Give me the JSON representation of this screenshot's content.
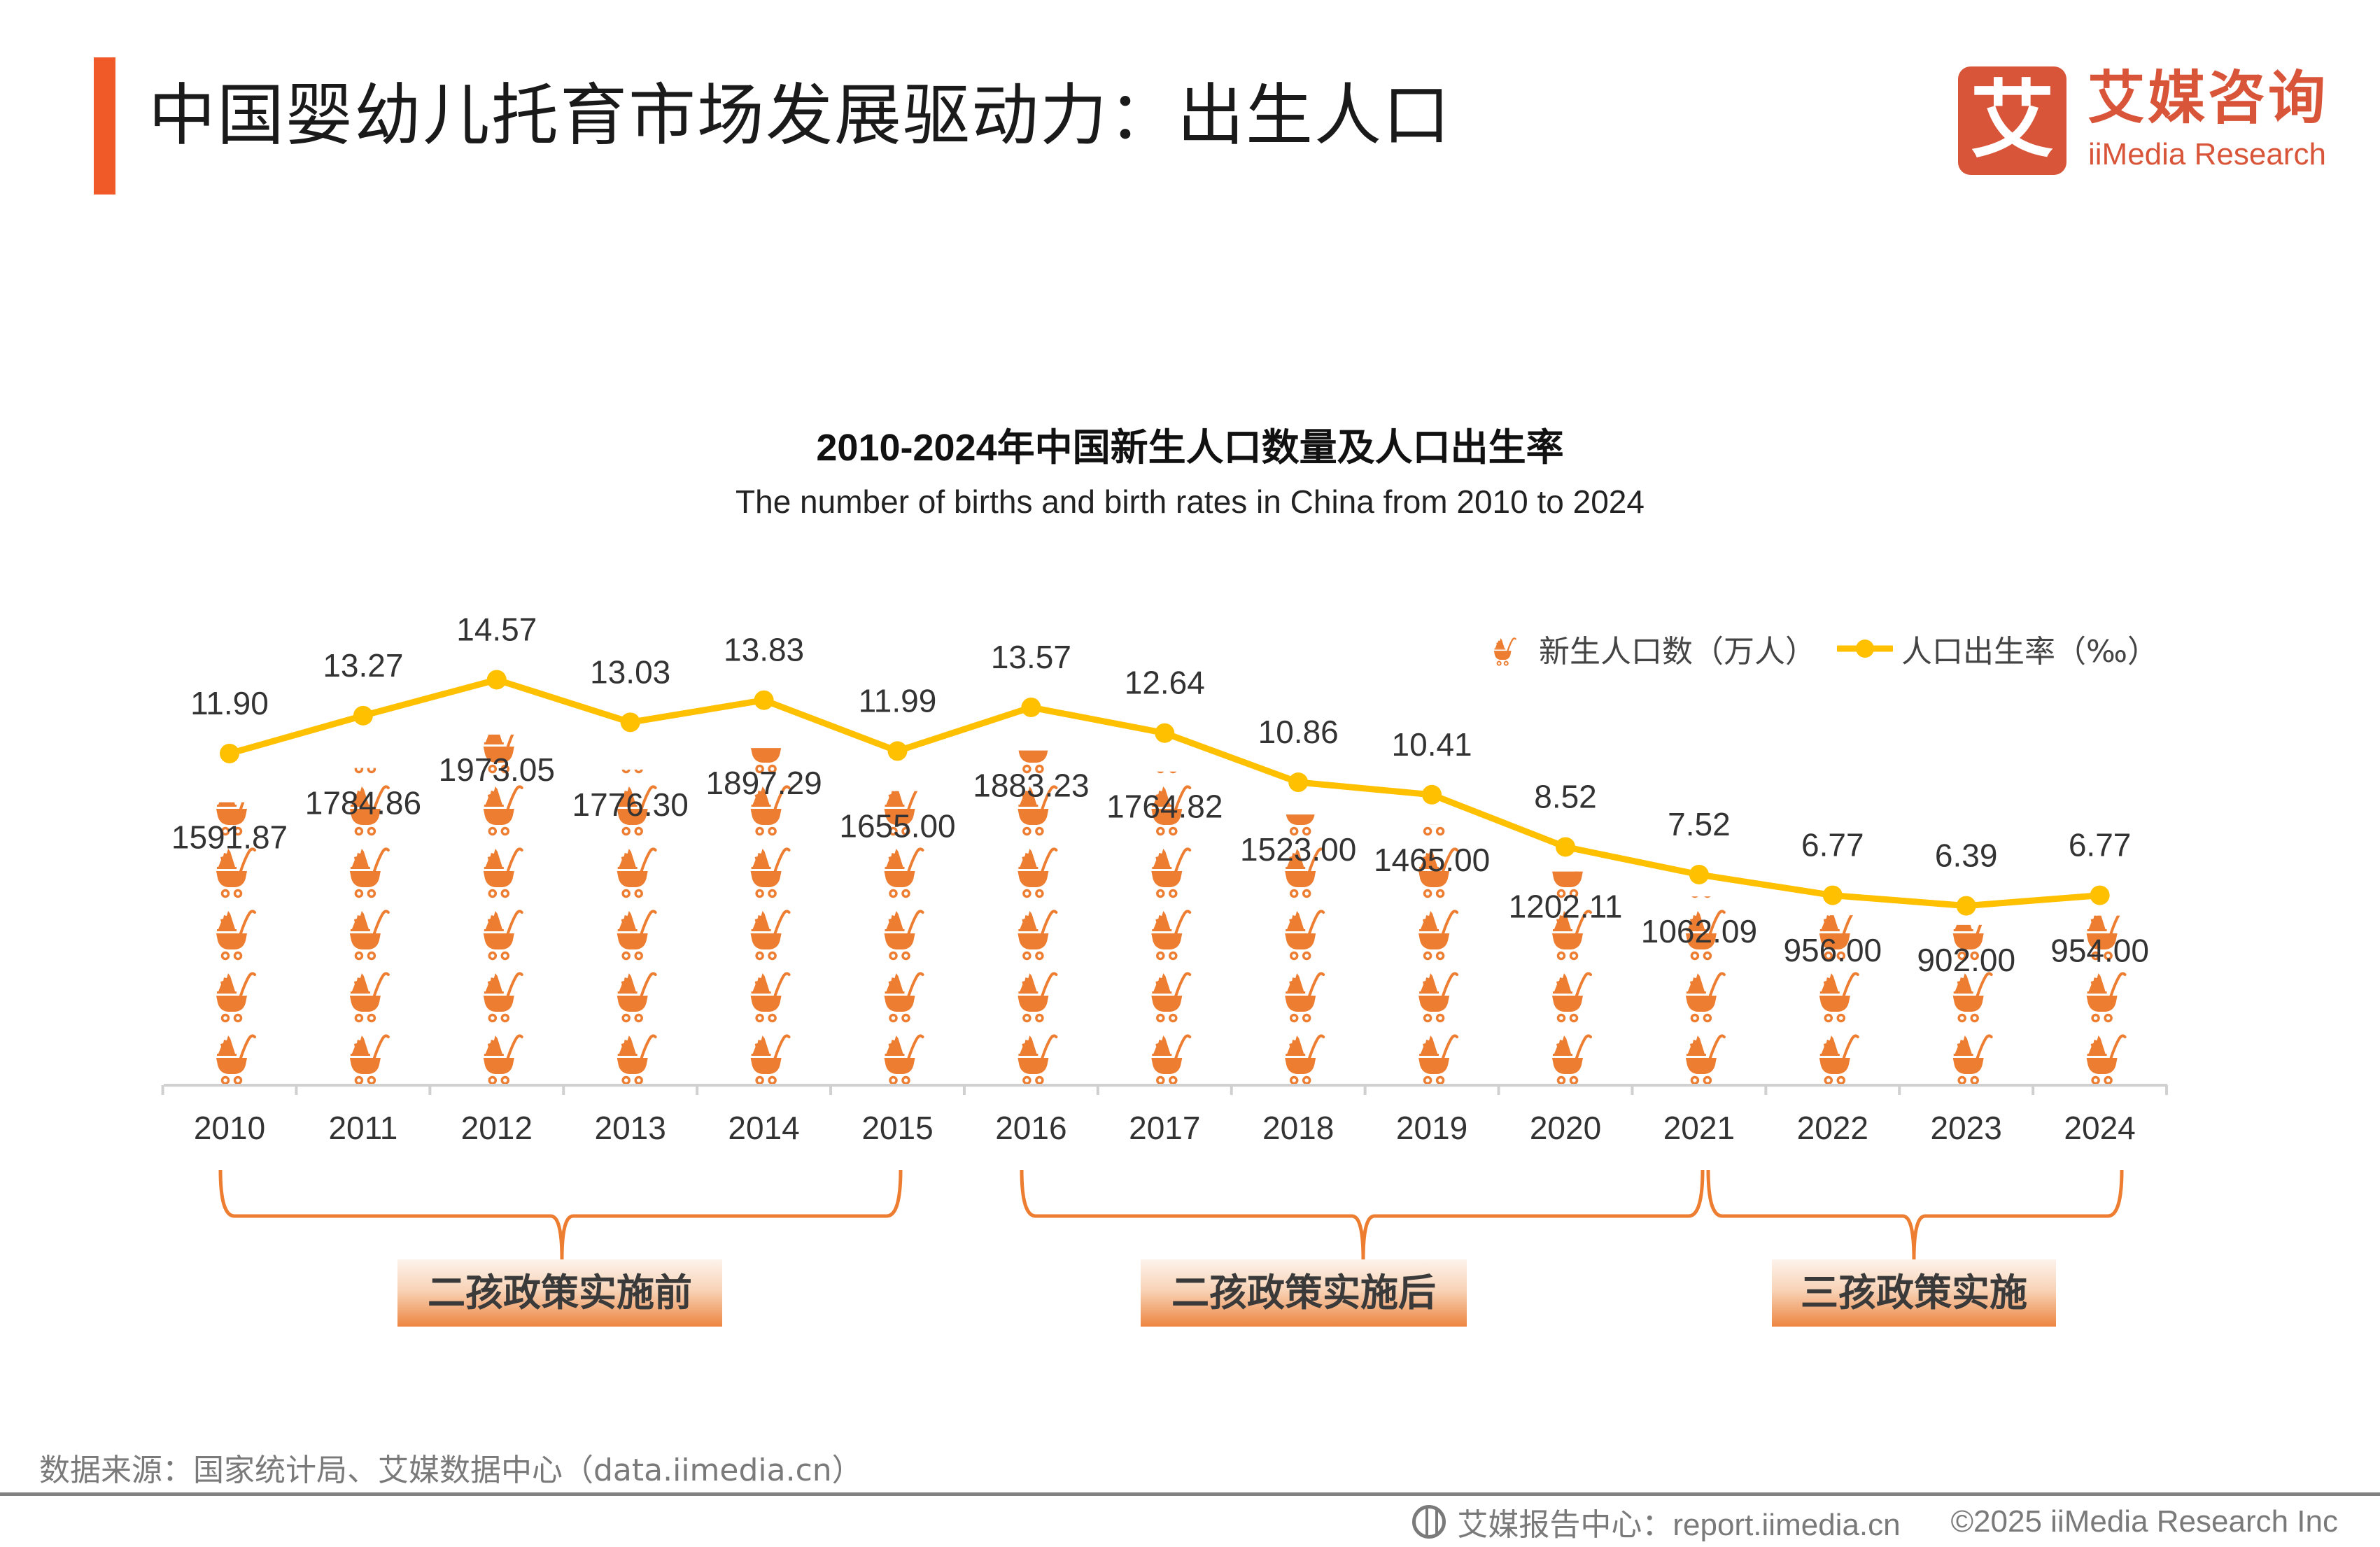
{
  "header": {
    "title": "中国婴幼儿托育市场发展驱动力：出生人口",
    "logo_cn": "艾媒咨询",
    "logo_en": "iiMedia Research",
    "logo_mark": "艾"
  },
  "chart_data": {
    "type": "bar+line",
    "title": "2010-2024年中国新生人口数量及人口出生率",
    "subtitle": "The number of births and birth rates in China from 2010 to 2024",
    "categories": [
      "2010",
      "2011",
      "2012",
      "2013",
      "2014",
      "2015",
      "2016",
      "2017",
      "2018",
      "2019",
      "2020",
      "2021",
      "2022",
      "2023",
      "2024"
    ],
    "series": [
      {
        "name": "新生人口数（万人）",
        "type": "pictograph-bar",
        "icon": "baby-stroller-icon",
        "color": "#ed7d31",
        "values": [
          1591.87,
          1784.86,
          1973.05,
          1776.3,
          1897.29,
          1655.0,
          1883.23,
          1764.82,
          1523.0,
          1465.0,
          1202.11,
          1062.09,
          956.0,
          902.0,
          954.0
        ],
        "labels": [
          "1591.87",
          "1784.86",
          "1973.05",
          "1776.30",
          "1897.29",
          "1655.00",
          "1883.23",
          "1764.82",
          "1523.00",
          "1465.00",
          "1202.11",
          "1062.09",
          "956.00",
          "902.00",
          "954.00"
        ]
      },
      {
        "name": "人口出生率（‰）",
        "type": "line",
        "color": "#ffc000",
        "values": [
          11.9,
          13.27,
          14.57,
          13.03,
          13.83,
          11.99,
          13.57,
          12.64,
          10.86,
          10.41,
          8.52,
          7.52,
          6.77,
          6.39,
          6.77
        ],
        "labels": [
          "11.90",
          "13.27",
          "14.57",
          "13.03",
          "13.83",
          "11.99",
          "13.57",
          "12.64",
          "10.86",
          "10.41",
          "8.52",
          "7.52",
          "6.77",
          "6.39",
          "6.77"
        ]
      }
    ],
    "legend_position": "top-right",
    "grid": false,
    "annotations": [
      {
        "label": "二孩政策实施前",
        "from": "2010",
        "to": "2015"
      },
      {
        "label": "二孩政策实施后",
        "from": "2016",
        "to": "2021"
      },
      {
        "label": "三孩政策实施",
        "from": "2021",
        "to": "2024"
      }
    ],
    "colors": {
      "brace": "#ed7d31",
      "axis": "#d0d0d0"
    }
  },
  "footer": {
    "source": "数据来源：国家统计局、艾媒数据中心（data.iimedia.cn）",
    "report_center": "艾媒报告中心：report.iimedia.cn",
    "copyright": "©2025  iiMedia Research  Inc"
  }
}
